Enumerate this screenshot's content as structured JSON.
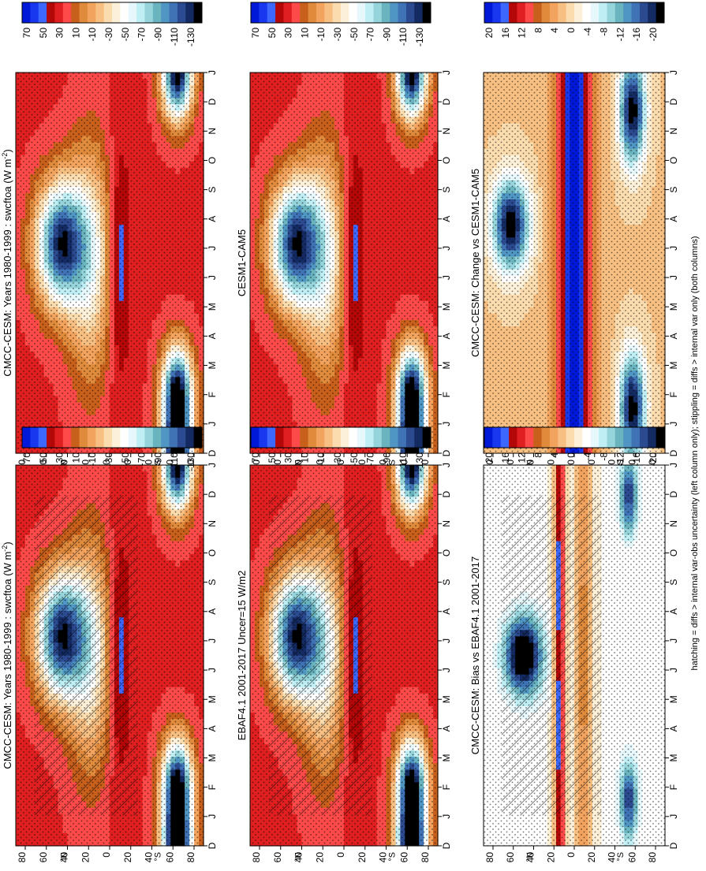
{
  "figure": {
    "footnote": "hatching = diffs > internal var-obs uncertainty (left column only); stippling = diffs > internal var only (both columns)"
  },
  "chart_data": [
    {
      "id": "model",
      "type": "heatmap",
      "title": "CMCC-CESM: Years 1980-1999 : swcftoa (W m",
      "title_sup": "-2",
      "title_end": ")",
      "x_ticks": [
        "D",
        "J",
        "F",
        "M",
        "A",
        "M",
        "J",
        "J",
        "A",
        "S",
        "O",
        "N",
        "D",
        "J"
      ],
      "y_ticks": [
        "80",
        "60",
        "40",
        "20",
        "0",
        "20",
        "40",
        "60",
        "80"
      ],
      "y_hemis": [
        "S",
        "N"
      ],
      "colorbar": [
        "70",
        "50",
        "30",
        "10",
        "-10",
        "-30",
        "-50",
        "-70",
        "-90",
        "-110",
        "-130"
      ],
      "hatching": true,
      "stippling": true
    },
    {
      "id": "model_ref",
      "type": "heatmap",
      "title": "CMCC-CESM: Years 1980-1999 : swcftoa (W m",
      "title_sup": "-2",
      "title_end": ")",
      "x_ticks": [
        "D",
        "J",
        "F",
        "M",
        "A",
        "M",
        "J",
        "J",
        "A",
        "S",
        "O",
        "N",
        "D",
        "J"
      ],
      "y_ticks": [
        "80",
        "60",
        "40",
        "20",
        "0",
        "20",
        "40",
        "60",
        "80"
      ],
      "y_hemis": [
        "S",
        "N"
      ],
      "colorbar": [
        "70",
        "50",
        "30",
        "10",
        "-10",
        "-30",
        "-50",
        "-70",
        "-90",
        "-110",
        "-130"
      ],
      "hatching": false,
      "stippling": true
    },
    {
      "id": "obs",
      "type": "heatmap",
      "title": "EBAF4.1 2001-2017 Uncer=15 W/m2",
      "x_ticks": [
        "D",
        "J",
        "F",
        "M",
        "A",
        "M",
        "J",
        "J",
        "A",
        "S",
        "O",
        "N",
        "D",
        "J"
      ],
      "y_ticks": [
        "80",
        "60",
        "40",
        "20",
        "0",
        "20",
        "40",
        "60",
        "80"
      ],
      "y_hemis": [
        "S",
        "N"
      ],
      "colorbar": [
        "70",
        "50",
        "30",
        "10",
        "-10",
        "-30",
        "-50",
        "-70",
        "-90",
        "-110",
        "-130"
      ],
      "hatching": true,
      "stippling": true
    },
    {
      "id": "ref",
      "type": "heatmap",
      "title": "CESM1-CAM5",
      "x_ticks": [
        "D",
        "J",
        "F",
        "M",
        "A",
        "M",
        "J",
        "J",
        "A",
        "S",
        "O",
        "N",
        "D",
        "J"
      ],
      "y_ticks": [
        "80",
        "60",
        "40",
        "20",
        "0",
        "20",
        "40",
        "60",
        "80"
      ],
      "y_hemis": [
        "S",
        "N"
      ],
      "colorbar": [
        "70",
        "50",
        "30",
        "10",
        "-10",
        "-30",
        "-50",
        "-70",
        "-90",
        "-110",
        "-130"
      ],
      "hatching": false,
      "stippling": true
    },
    {
      "id": "bias",
      "type": "heatmap",
      "title": "CMCC-CESM: Bias vs EBAF4.1 2001-2017",
      "x_ticks": [
        "D",
        "J",
        "F",
        "M",
        "A",
        "M",
        "J",
        "J",
        "A",
        "S",
        "O",
        "N",
        "D",
        "J"
      ],
      "y_ticks": [
        "80",
        "60",
        "40",
        "20",
        "0",
        "20",
        "40",
        "60",
        "80"
      ],
      "y_hemis": [
        "S",
        "N"
      ],
      "colorbar": [
        "20",
        "16",
        "12",
        "8",
        "4",
        "0",
        "-4",
        "-8",
        "-12",
        "-16",
        "-20"
      ],
      "hatching": true,
      "stippling": true
    },
    {
      "id": "change",
      "type": "heatmap",
      "title": "CMCC-CESM: Change vs CESM1-CAM5",
      "x_ticks": [
        "D",
        "J",
        "F",
        "M",
        "A",
        "M",
        "J",
        "J",
        "A",
        "S",
        "O",
        "N",
        "D",
        "J"
      ],
      "y_ticks": [
        "80",
        "60",
        "40",
        "20",
        "0",
        "20",
        "40",
        "60",
        "80"
      ],
      "y_hemis": [
        "S",
        "N"
      ],
      "colorbar": [
        "20",
        "16",
        "12",
        "8",
        "4",
        "0",
        "-4",
        "-8",
        "-12",
        "-16",
        "-20"
      ],
      "hatching": false,
      "stippling": true
    }
  ]
}
